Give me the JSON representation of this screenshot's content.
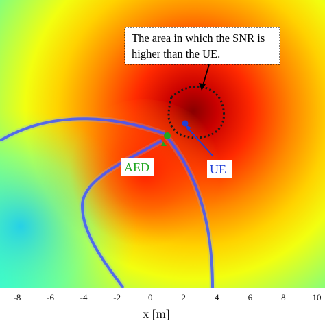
{
  "chart_data": {
    "type": "heatmap",
    "title": "",
    "xlabel": "x [m]",
    "ylabel": "",
    "x_ticks": [
      -8,
      -6,
      -4,
      -2,
      0,
      2,
      4,
      6,
      8,
      10
    ],
    "xlim": [
      -9,
      10
    ],
    "colormap": "jet",
    "points": [
      {
        "name": "AED",
        "x": 0.9,
        "color": "#1fa61f"
      },
      {
        "name": "UE",
        "x": 2.0,
        "color": "#1f3fd6"
      }
    ],
    "annotation": {
      "lines": [
        "The area in which the SNR is",
        "higher than the UE."
      ]
    }
  }
}
